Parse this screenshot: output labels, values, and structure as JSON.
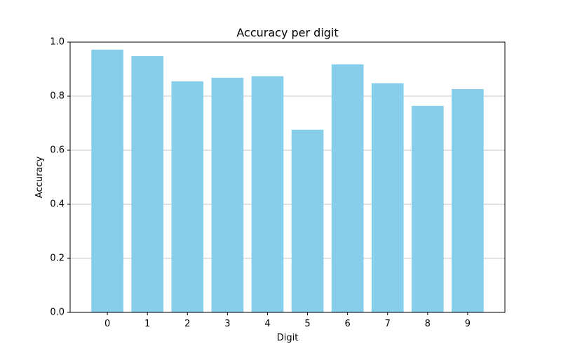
{
  "chart_data": {
    "type": "bar",
    "title": "Accuracy per digit",
    "xlabel": "Digit",
    "ylabel": "Accuracy",
    "categories": [
      "0",
      "1",
      "2",
      "3",
      "4",
      "5",
      "6",
      "7",
      "8",
      "9"
    ],
    "values": [
      0.972,
      0.948,
      0.855,
      0.868,
      0.874,
      0.676,
      0.918,
      0.848,
      0.764,
      0.826
    ],
    "ylim": [
      0.0,
      1.0
    ],
    "yticks": [
      0.0,
      0.2,
      0.4,
      0.6,
      0.8,
      1.0
    ],
    "ytick_labels": [
      "0.0",
      "0.2",
      "0.4",
      "0.6",
      "0.8",
      "1.0"
    ],
    "grid": "y-axis",
    "bar_color": "#87ceeb",
    "grid_color": "#b0b0b0"
  }
}
